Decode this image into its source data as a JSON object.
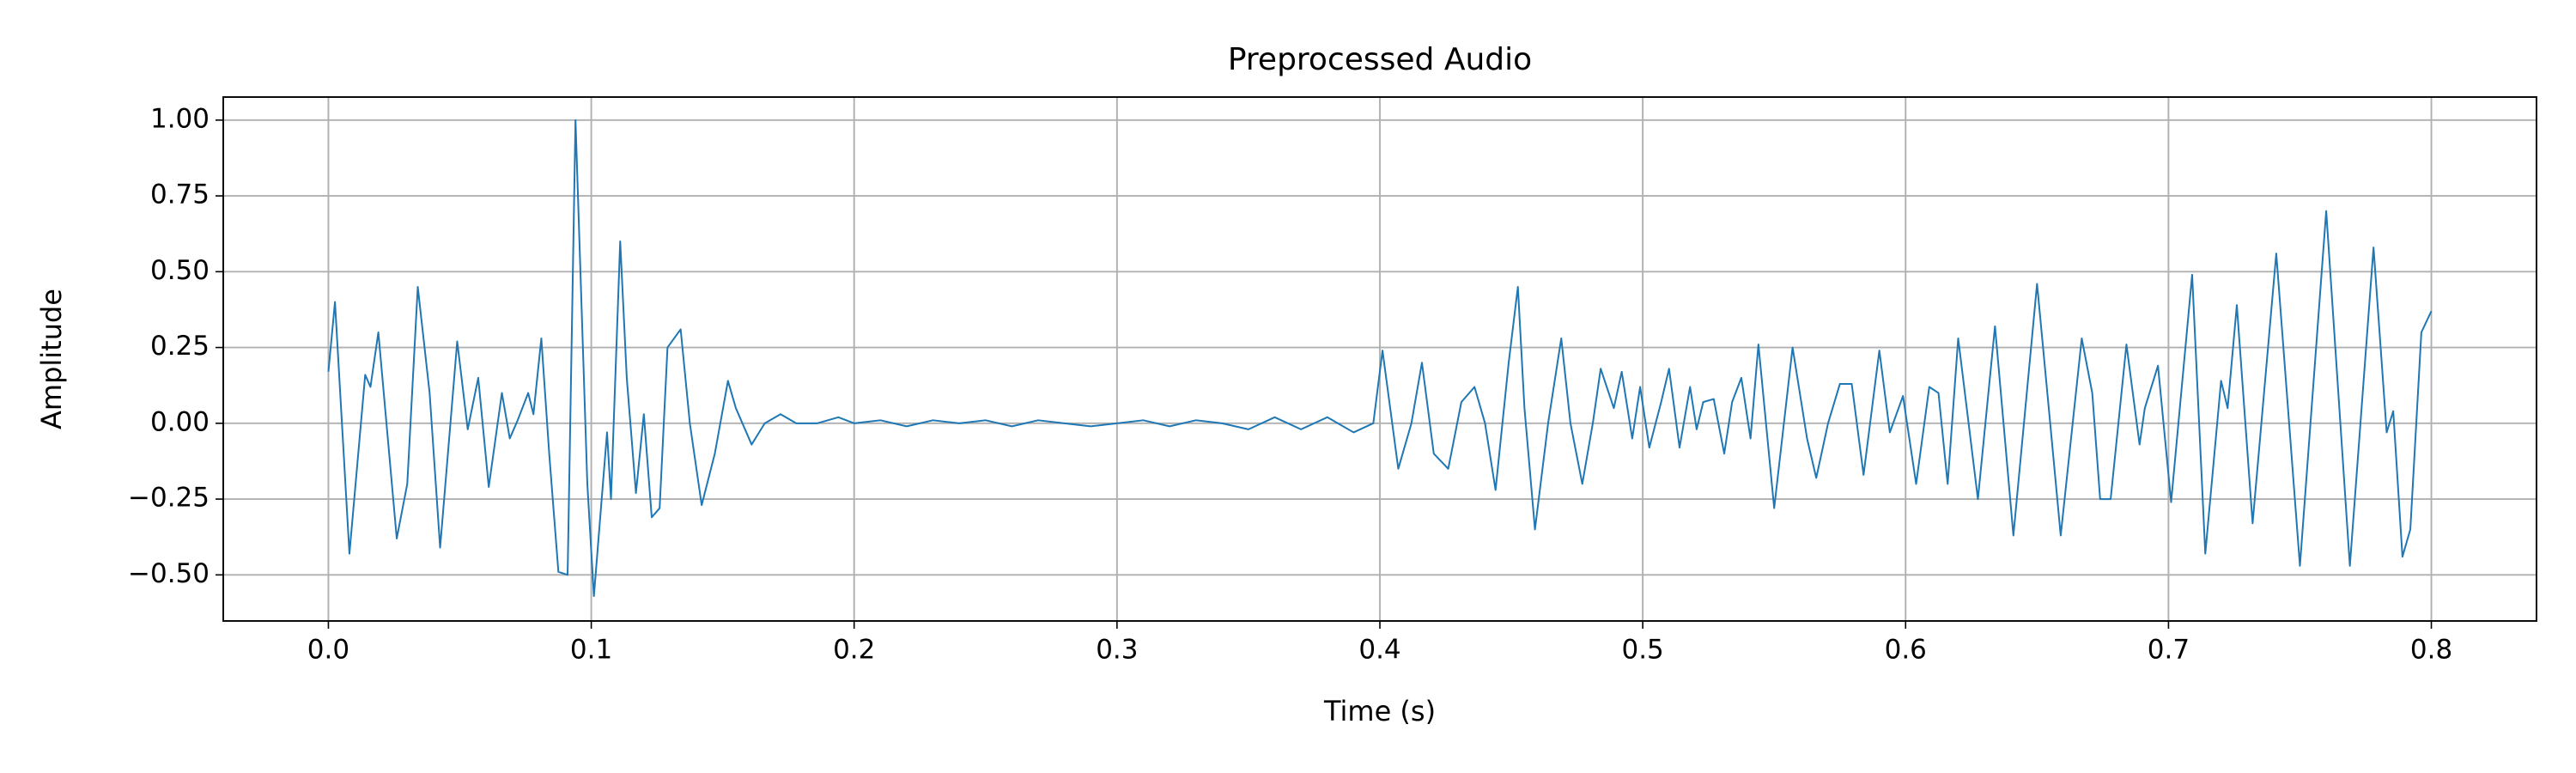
{
  "chart_data": {
    "type": "line",
    "title": "Preprocessed Audio",
    "x_label": "Time (s)",
    "y_label": "Amplitude",
    "color": "#1f77b4",
    "grid": true,
    "xlim": [
      -0.04,
      0.84
    ],
    "ylim": [
      -0.652,
      1.076
    ],
    "xticks": [
      {
        "value": 0,
        "label": "0.0"
      },
      0.1,
      0.2,
      0.3,
      0.4,
      0.5,
      0.6,
      0.7,
      {
        "value": 0.8,
        "label": "0.8"
      }
    ],
    "yticks": [
      {
        "value": -0.5,
        "label": "−0.50"
      },
      {
        "value": -0.25,
        "label": "−0.25"
      },
      {
        "value": 0,
        "label": "0.00"
      },
      {
        "value": 0.25,
        "label": "0.25"
      },
      {
        "value": 0.5,
        "label": "0.50"
      },
      {
        "value": 0.75,
        "label": "0.75"
      },
      {
        "value": 1,
        "label": "1.00"
      }
    ],
    "x": [
      0,
      0.0025,
      0.008,
      0.014,
      0.016,
      0.019,
      0.026,
      0.03,
      0.034,
      0.0385,
      0.0425,
      0.049,
      0.053,
      0.057,
      0.061,
      0.066,
      0.069,
      0.072,
      0.076,
      0.078,
      0.081,
      0.084,
      0.0875,
      0.091,
      0.094,
      0.0985,
      0.101,
      0.106,
      0.1075,
      0.111,
      0.1135,
      0.117,
      0.12,
      0.123,
      0.126,
      0.129,
      0.134,
      0.1375,
      0.142,
      0.147,
      0.152,
      0.155,
      0.161,
      0.166,
      0.172,
      0.178,
      0.186,
      0.194,
      0.2,
      0.21,
      0.22,
      0.23,
      0.24,
      0.25,
      0.26,
      0.27,
      0.28,
      0.29,
      0.3,
      0.31,
      0.32,
      0.33,
      0.34,
      0.35,
      0.36,
      0.37,
      0.38,
      0.39,
      0.3975,
      0.401,
      0.407,
      0.412,
      0.416,
      0.4205,
      0.426,
      0.431,
      0.436,
      0.44,
      0.444,
      0.449,
      0.4525,
      0.455,
      0.459,
      0.464,
      0.469,
      0.4725,
      0.477,
      0.481,
      0.484,
      0.489,
      0.492,
      0.496,
      0.499,
      0.5025,
      0.507,
      0.51,
      0.514,
      0.518,
      0.5205,
      0.523,
      0.527,
      0.531,
      0.534,
      0.5375,
      0.541,
      0.544,
      0.55,
      0.557,
      0.5625,
      0.566,
      0.5705,
      0.575,
      0.5795,
      0.584,
      0.59,
      0.594,
      0.599,
      0.604,
      0.609,
      0.6125,
      0.616,
      0.62,
      0.6275,
      0.634,
      0.641,
      0.65,
      0.655,
      0.659,
      0.667,
      0.671,
      0.674,
      0.678,
      0.684,
      0.689,
      0.691,
      0.696,
      0.701,
      0.709,
      0.714,
      0.72,
      0.7225,
      0.726,
      0.732,
      0.741,
      0.75,
      0.76,
      0.769,
      0.778,
      0.783,
      0.7855,
      0.789,
      0.792,
      0.7962,
      0.8
    ],
    "values": [
      0.17,
      0.4,
      -0.43,
      0.16,
      0.12,
      0.3,
      -0.38,
      -0.2,
      0.45,
      0.1,
      -0.41,
      0.27,
      -0.02,
      0.15,
      -0.21,
      0.1,
      -0.05,
      0.01,
      0.1,
      0.03,
      0.28,
      -0.1,
      -0.49,
      -0.5,
      1.0,
      -0.2,
      -0.57,
      -0.03,
      -0.25,
      0.6,
      0.15,
      -0.23,
      0.03,
      -0.31,
      -0.28,
      0.25,
      0.31,
      0.0,
      -0.27,
      -0.1,
      0.14,
      0.05,
      -0.07,
      0.0,
      0.03,
      0.0,
      0.0,
      0.02,
      0.0,
      0.01,
      -0.01,
      0.01,
      0.0,
      0.01,
      -0.01,
      0.01,
      0.0,
      -0.01,
      0.0,
      0.01,
      -0.01,
      0.01,
      0.0,
      -0.02,
      0.02,
      -0.02,
      0.02,
      -0.03,
      0.0,
      0.24,
      -0.15,
      0.0,
      0.2,
      -0.1,
      -0.15,
      0.07,
      0.12,
      0.0,
      -0.22,
      0.2,
      0.45,
      0.05,
      -0.35,
      0.0,
      0.28,
      0.0,
      -0.2,
      0.0,
      0.18,
      0.05,
      0.17,
      -0.05,
      0.12,
      -0.08,
      0.07,
      0.18,
      -0.08,
      0.12,
      -0.02,
      0.07,
      0.08,
      -0.1,
      0.07,
      0.15,
      -0.05,
      0.26,
      -0.28,
      0.25,
      -0.05,
      -0.18,
      0.0,
      0.13,
      0.13,
      -0.17,
      0.24,
      -0.03,
      0.09,
      -0.2,
      0.12,
      0.1,
      -0.2,
      0.28,
      -0.25,
      0.32,
      -0.37,
      0.46,
      0.0,
      -0.37,
      0.28,
      0.1,
      -0.25,
      -0.25,
      0.26,
      -0.07,
      0.05,
      0.19,
      -0.26,
      0.49,
      -0.43,
      0.14,
      0.05,
      0.39,
      -0.33,
      0.56,
      -0.47,
      0.7,
      -0.47,
      0.58,
      -0.03,
      0.04,
      -0.44,
      -0.35,
      0.3,
      0.37
    ]
  }
}
